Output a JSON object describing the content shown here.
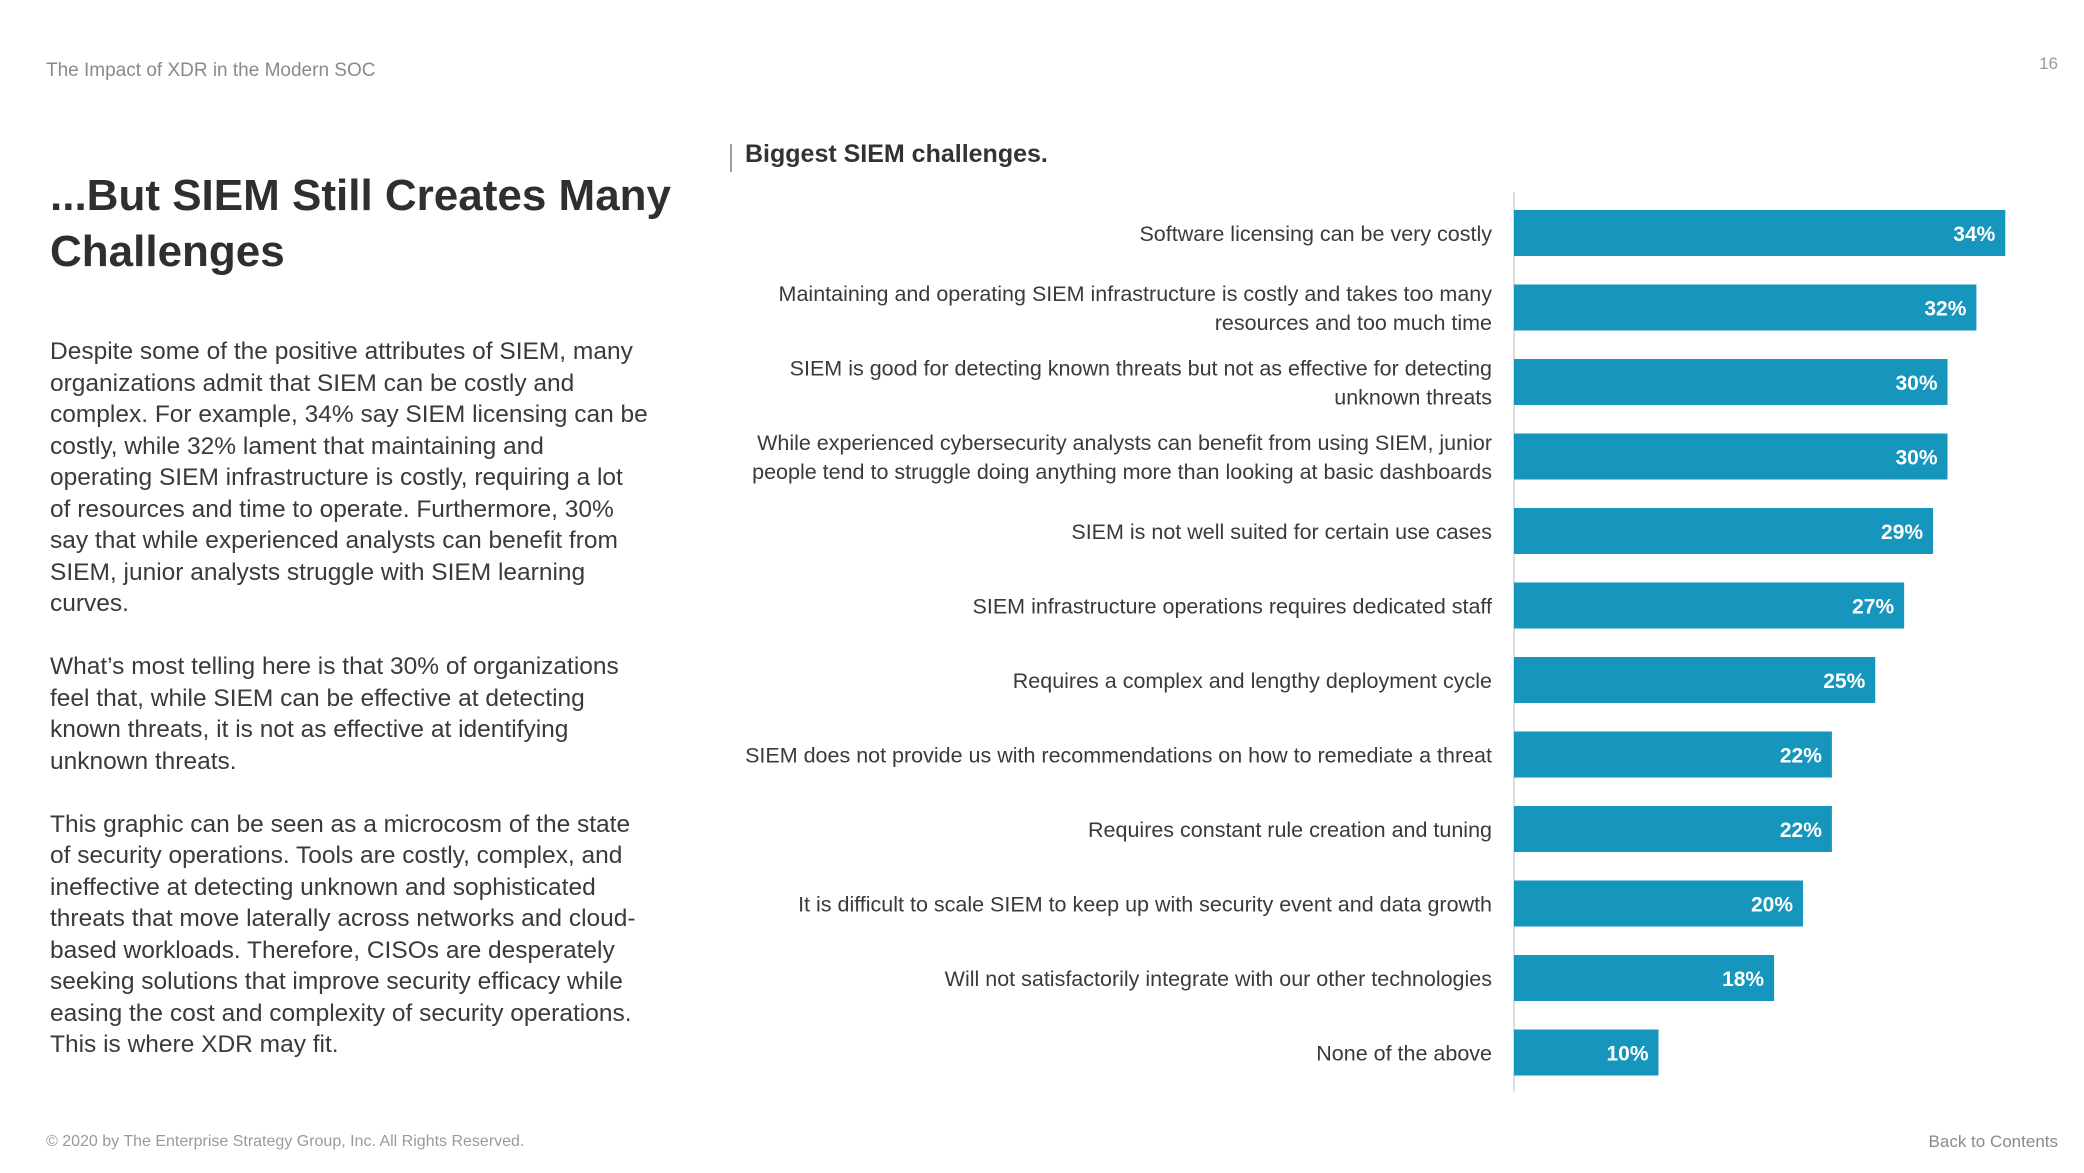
{
  "header": {
    "running_title": "The Impact of XDR in the Modern SOC",
    "page_number": "16"
  },
  "title": "...But SIEM Still Creates Many Challenges",
  "paragraphs": [
    "Despite some of the positive attributes of SIEM, many organizations admit that SIEM can be costly and complex. For example, 34% say SIEM licensing can be costly, while 32% lament that maintaining and operating SIEM infrastructure is costly, requiring a lot of resources and time to operate. Furthermore, 30% say that while experienced analysts can benefit from SIEM, junior analysts struggle with SIEM learning curves.",
    "What’s most telling here is that 30% of organizations feel that, while SIEM can be effective at detecting known threats, it is not as effective at identifying unknown threats.",
    "This graphic can be seen as a microcosm of the state of security operations. Tools are costly, complex, and ineffective at detecting unknown and sophisticated threats that move laterally across networks and cloud-based workloads. Therefore, CISOs are desperately seeking solutions that improve security efficacy while easing the cost and complexity of security operations. This is where XDR may fit."
  ],
  "chart_data": {
    "type": "bar",
    "orientation": "horizontal",
    "title": "Biggest SIEM challenges.",
    "categories": [
      "Software licensing can be very costly",
      "Maintaining and operating SIEM infrastructure is costly and takes too many resources and too much time",
      "SIEM is good for detecting known threats but not as effective for detecting unknown threats",
      "While experienced cybersecurity analysts can benefit from using SIEM, junior people tend to struggle doing anything more than looking at basic dashboards",
      "SIEM is not well suited for certain use cases",
      "SIEM infrastructure operations requires dedicated staff",
      "Requires a complex and lengthy deployment cycle",
      "SIEM does not provide us with recommendations on how to remediate a threat",
      "Requires constant rule creation and tuning",
      "It is difficult to scale SIEM to keep up with security event and data growth",
      "Will not satisfactorily integrate with our other technologies",
      "None of the above"
    ],
    "category_lines": [
      [
        "Software licensing can be very costly"
      ],
      [
        "Maintaining and operating SIEM infrastructure is costly and takes too many",
        "resources and too much time"
      ],
      [
        "SIEM is good for detecting known threats but not as effective for detecting",
        "unknown threats"
      ],
      [
        "While experienced cybersecurity analysts can benefit from using SIEM, junior",
        "people tend to struggle doing anything more than looking at basic dashboards"
      ],
      [
        "SIEM is not well suited for certain use cases"
      ],
      [
        "SIEM infrastructure operations requires dedicated staff"
      ],
      [
        "Requires a complex and lengthy deployment cycle"
      ],
      [
        "SIEM does not provide us with recommendations on how to remediate a threat"
      ],
      [
        "Requires constant rule creation and tuning"
      ],
      [
        "It is difficult to scale SIEM to keep up with security event and data growth"
      ],
      [
        "Will not satisfactorily integrate with our other technologies"
      ],
      [
        "None of the above"
      ]
    ],
    "values": [
      34,
      32,
      30,
      30,
      29,
      27,
      25,
      22,
      22,
      20,
      18,
      10
    ],
    "value_labels": [
      "34%",
      "32%",
      "30%",
      "30%",
      "29%",
      "27%",
      "25%",
      "22%",
      "22%",
      "20%",
      "18%",
      "10%"
    ],
    "unit": "%",
    "xlim": [
      0,
      40
    ],
    "bar_color": "#1695bd",
    "label_color": "#ffffff",
    "grid": false,
    "legend": "none"
  },
  "footer": {
    "copyright": "© 2020 by The Enterprise Strategy Group, Inc. All Rights Reserved.",
    "back_link": "Back to Contents"
  }
}
